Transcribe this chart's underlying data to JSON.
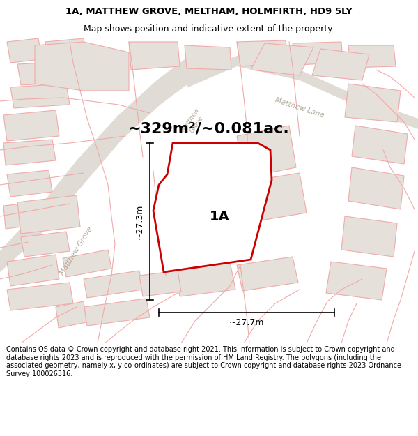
{
  "title_line1": "1A, MATTHEW GROVE, MELTHAM, HOLMFIRTH, HD9 5LY",
  "title_line2": "Map shows position and indicative extent of the property.",
  "area_text": "~329m²/~0.081ac.",
  "label_1a": "1A",
  "dim_vertical": "~27.3m",
  "dim_horizontal": "~27.7m",
  "map_bg": "#f7f5f3",
  "road_color": "#e0dbd5",
  "plot_line_color": "#cc0000",
  "other_plot_line_color": "#f0aaaa",
  "building_fill_color": "#e5e0da",
  "footer_text": "Contains OS data © Crown copyright and database right 2021. This information is subject to Crown copyright and database rights 2023 and is reproduced with the permission of HM Land Registry. The polygons (including the associated geometry, namely x, y co-ordinates) are subject to Crown copyright and database rights 2023 Ordnance Survey 100026316.",
  "title_fontsize": 9.5,
  "area_fontsize": 16,
  "label_fontsize": 14,
  "footer_fontsize": 7.0,
  "road_label_fontsize": 7.5,
  "dim_fontsize": 9,
  "white_bg": "#ffffff"
}
